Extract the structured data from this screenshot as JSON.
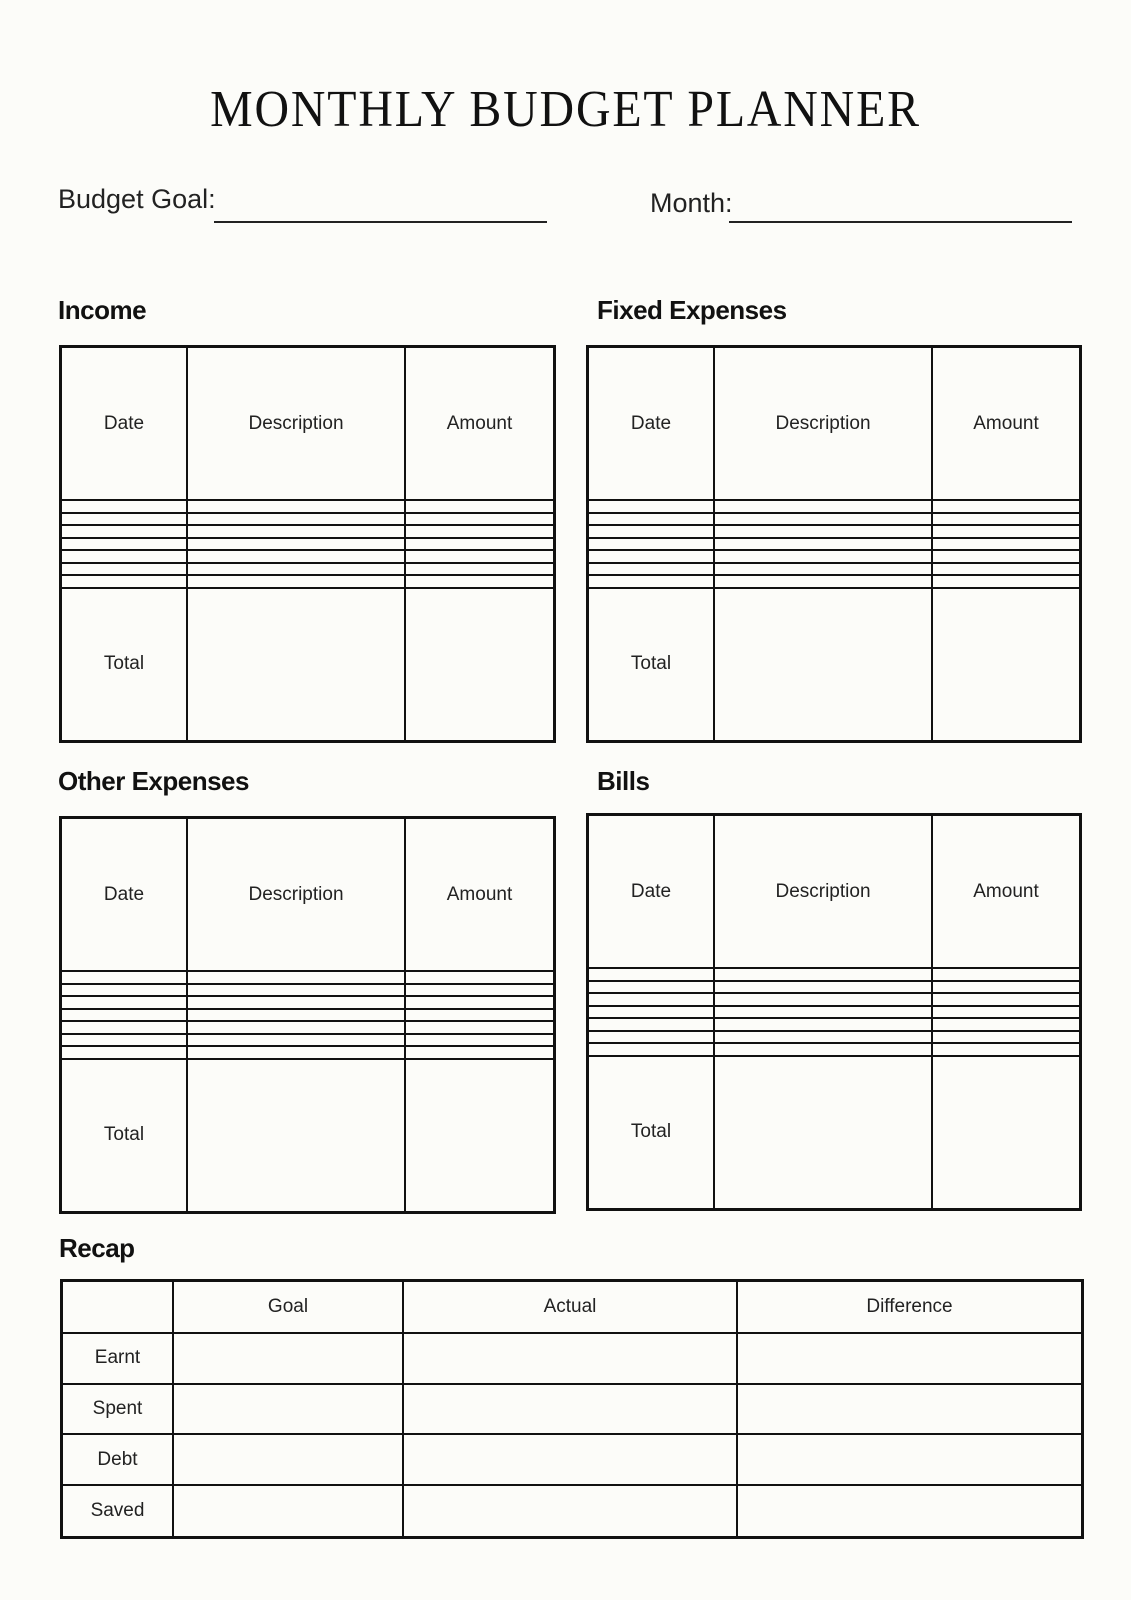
{
  "title": "MONTHLY BUDGET PLANNER",
  "budget_goal_label": "Budget Goal:",
  "month_label": "Month:",
  "sections": {
    "income": {
      "heading": "Income",
      "columns": [
        "Date",
        "Description",
        "Amount"
      ],
      "total_label": "Total"
    },
    "fixed": {
      "heading": "Fixed Expenses",
      "columns": [
        "Date",
        "Description",
        "Amount"
      ],
      "total_label": "Total"
    },
    "other": {
      "heading": "Other Expenses",
      "columns": [
        "Date",
        "Description",
        "Amount"
      ],
      "total_label": "Total"
    },
    "bills": {
      "heading": "Bills",
      "columns": [
        "Date",
        "Description",
        "Amount"
      ],
      "total_label": "Total"
    }
  },
  "recap": {
    "heading": "Recap",
    "columns": [
      "",
      "Goal",
      "Actual",
      "Difference"
    ],
    "rows": [
      "Earnt",
      "Spent",
      "Debt",
      "Saved"
    ]
  }
}
